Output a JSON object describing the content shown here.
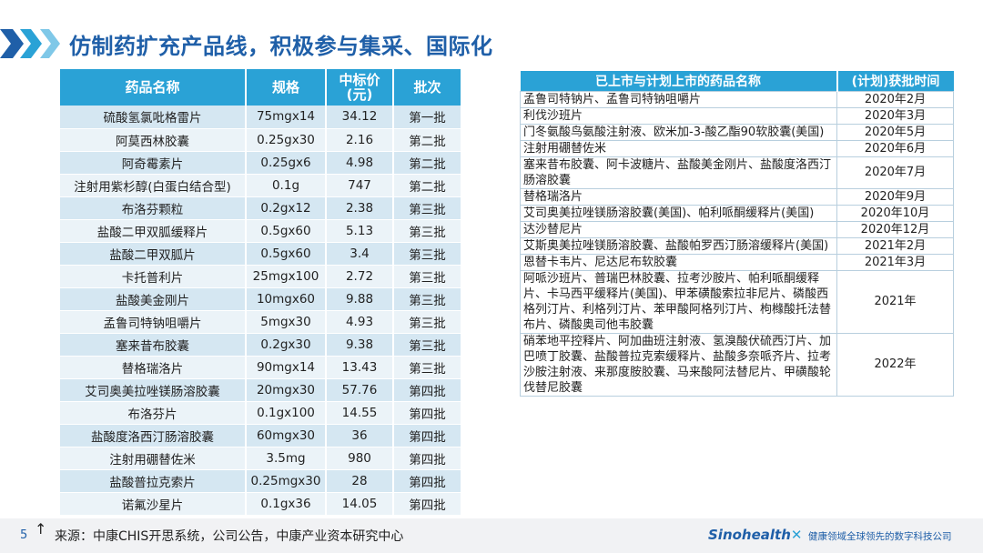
{
  "page": {
    "title": "仿制药扩充产品线，积极参与集采、国际化",
    "page_number": "5",
    "source": "来源：中康CHIS开思系统，公司公告，中康产业资本研究中心",
    "logo": "Sinohealth",
    "slogan": "健康领域全球领先的数字科技公司",
    "accent_color": "#2aa2d6",
    "title_color": "#1f5fa8"
  },
  "left_table": {
    "headers": [
      "药品名称",
      "规格",
      "中标价(元)",
      "批次"
    ],
    "rows": [
      [
        "硫酸氢氯吡格雷片",
        "75mgx14",
        "34.12",
        "第一批"
      ],
      [
        "阿莫西林胶囊",
        "0.25gx30",
        "2.16",
        "第二批"
      ],
      [
        "阿奇霉素片",
        "0.25gx6",
        "4.98",
        "第二批"
      ],
      [
        "注射用紫杉醇(白蛋白结合型)",
        "0.1g",
        "747",
        "第二批"
      ],
      [
        "布洛芬颗粒",
        "0.2gx12",
        "2.38",
        "第三批"
      ],
      [
        "盐酸二甲双胍缓释片",
        "0.5gx60",
        "5.13",
        "第三批"
      ],
      [
        "盐酸二甲双胍片",
        "0.5gx60",
        "3.4",
        "第三批"
      ],
      [
        "卡托普利片",
        "25mgx100",
        "2.72",
        "第三批"
      ],
      [
        "盐酸美金刚片",
        "10mgx60",
        "9.88",
        "第三批"
      ],
      [
        "孟鲁司特钠咀嚼片",
        "5mgx30",
        "4.93",
        "第三批"
      ],
      [
        "塞来昔布胶囊",
        "0.2gx30",
        "9.38",
        "第三批"
      ],
      [
        "替格瑞洛片",
        "90mgx14",
        "13.43",
        "第三批"
      ],
      [
        "艾司奥美拉唑镁肠溶胶囊",
        "20mgx30",
        "57.76",
        "第四批"
      ],
      [
        "布洛芬片",
        "0.1gx100",
        "14.55",
        "第四批"
      ],
      [
        "盐酸度洛西汀肠溶胶囊",
        "60mgx30",
        "36",
        "第四批"
      ],
      [
        "注射用硼替佐米",
        "3.5mg",
        "980",
        "第四批"
      ],
      [
        "盐酸普拉克索片",
        "0.25mgx30",
        "28",
        "第四批"
      ],
      [
        "诺氟沙星片",
        "0.1gx36",
        "14.05",
        "第四批"
      ]
    ]
  },
  "right_table": {
    "headers": [
      "已上市与计划上市的药品名称",
      "(计划)获批时间"
    ],
    "rows": [
      [
        "孟鲁司特钠片、孟鲁司特钠咀嚼片",
        "2020年2月"
      ],
      [
        "利伐沙班片",
        "2020年3月"
      ],
      [
        "门冬氨酸鸟氨酸注射液、欧米加-3-酸乙酯90软胶囊(美国)",
        "2020年5月"
      ],
      [
        "注射用硼替佐米",
        "2020年6月"
      ],
      [
        "塞来昔布胶囊、阿卡波糖片、盐酸美金刚片、盐酸度洛西汀肠溶胶囊",
        "2020年7月"
      ],
      [
        "替格瑞洛片",
        "2020年9月"
      ],
      [
        "艾司奥美拉唑镁肠溶胶囊(美国)、帕利哌酮缓释片(美国)",
        "2020年10月"
      ],
      [
        "达沙替尼片",
        "2020年12月"
      ],
      [
        "艾斯奥美拉唑镁肠溶胶囊、盐酸帕罗西汀肠溶缓释片(美国)",
        "2021年2月"
      ],
      [
        "恩替卡韦片、尼达尼布软胶囊",
        "2021年3月"
      ],
      [
        "阿哌沙班片、普瑞巴林胶囊、拉考沙胺片、帕利哌酮缓释片、卡马西平缓释片(美国)、甲苯磺酸索拉非尼片、磷酸西格列汀片、利格列汀片、苯甲酸阿格列汀片、枸橼酸托法替布片、磷酸奥司他韦胶囊",
        "2021年"
      ],
      [
        "硝苯地平控释片、阿加曲班注射液、氢溴酸伏硫西汀片、加巴喷丁胶囊、盐酸普拉克索缓释片、盐酸多奈哌齐片、拉考沙胺注射液、来那度胺胶囊、马来酸阿法替尼片、甲磺酸轮伐替尼胶囊",
        "2022年"
      ]
    ]
  }
}
